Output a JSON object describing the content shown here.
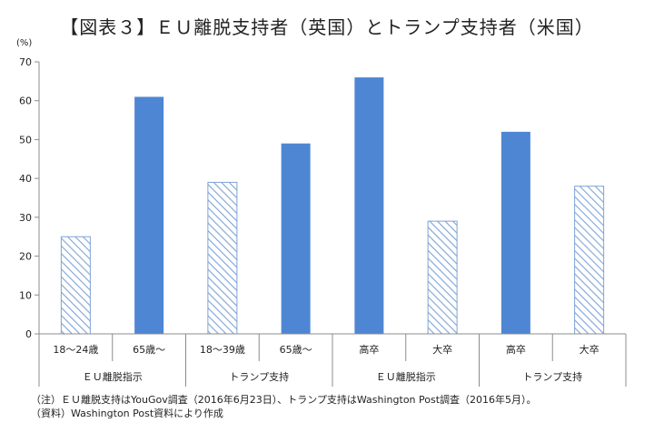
{
  "title": "【図表３】ＥＵ離脱支持者（英国）とトランプ支持者（米国）",
  "chart_data": {
    "type": "bar",
    "title": "【図表３】ＥＵ離脱支持者（英国）とトランプ支持者（米国）",
    "ylabel": "(%)",
    "ylim": [
      0,
      70
    ],
    "yticks": [
      0,
      10,
      20,
      30,
      40,
      50,
      60,
      70
    ],
    "categories": [
      "18～24歳",
      "65歳～",
      "18～39歳",
      "65歳～",
      "高卒",
      "大卒",
      "高卒",
      "大卒"
    ],
    "values": [
      25,
      61,
      39,
      49,
      66,
      29,
      52,
      38
    ],
    "styles": [
      "hatched",
      "solid",
      "hatched",
      "solid",
      "solid",
      "hatched",
      "solid",
      "hatched"
    ],
    "groups": [
      {
        "label": "ＥＵ離脱指示",
        "span": [
          0,
          1
        ]
      },
      {
        "label": "トランプ支持",
        "span": [
          2,
          3
        ]
      },
      {
        "label": "ＥＵ離脱指示",
        "span": [
          4,
          5
        ]
      },
      {
        "label": "トランプ支持",
        "span": [
          6,
          7
        ]
      }
    ],
    "colors": {
      "solid": "#4e86d4",
      "hatch": "#7fa3d6",
      "axis": "#8c8c8c"
    }
  },
  "notes": [
    "（注）ＥＵ離脱支持はYouGov調査（2016年6月23日）、トランプ支持はWashington Post調査（2016年5月）。",
    "（資料）Washington Post資料により作成"
  ]
}
